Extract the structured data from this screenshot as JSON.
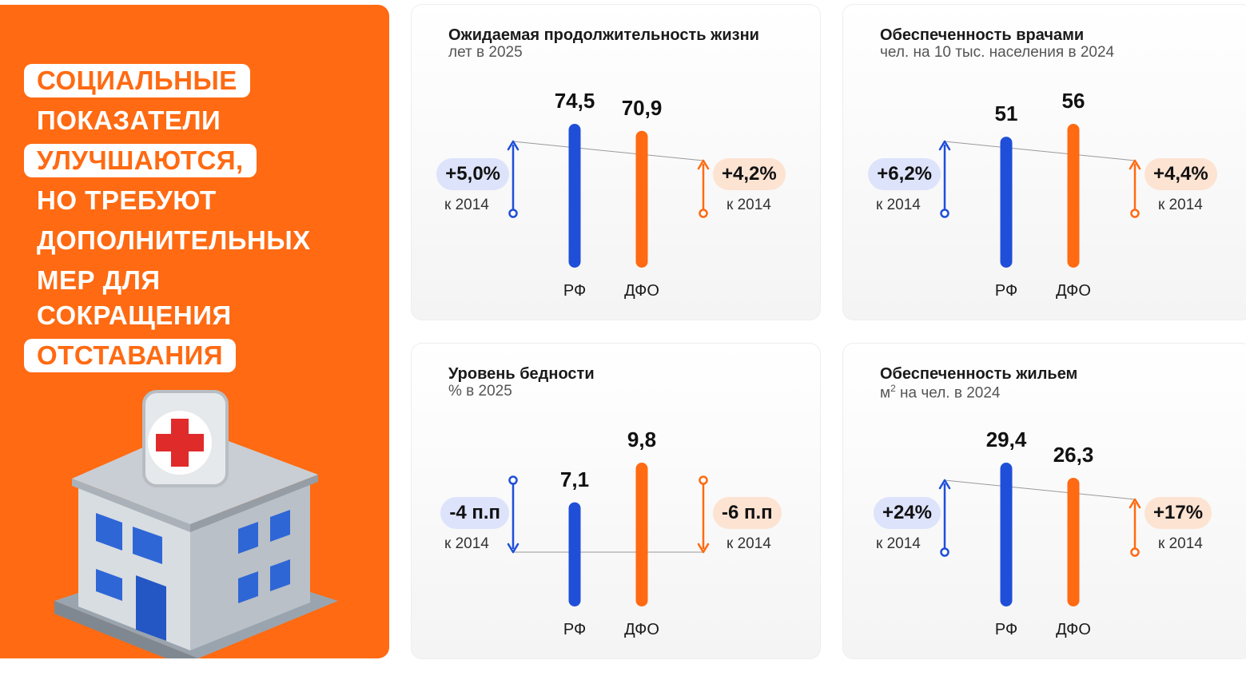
{
  "hero": {
    "lines": [
      {
        "text": "СОЦИАЛЬНЫЕ",
        "highlight": true
      },
      {
        "text": "ПОКАЗАТЕЛИ",
        "highlight": false
      },
      {
        "text": "УЛУЧШАЮТСЯ,",
        "highlight": true
      },
      {
        "text": "НО ТРЕБУЮТ",
        "highlight": false
      },
      {
        "text": "ДОПОЛНИТЕЛЬНЫХ",
        "highlight": false
      },
      {
        "text": "МЕР ДЛЯ",
        "highlight": false
      },
      {
        "text": "СОКРАЩЕНИЯ",
        "highlight": false
      },
      {
        "text": "ОТСТАВАНИЯ",
        "highlight": true
      }
    ],
    "illustration": "hospital-building-icon",
    "accent": "#ff6a12"
  },
  "colors": {
    "rf": "#1f4fd8",
    "dfo": "#ff6a12",
    "rf_pill": "#dde3fb",
    "dfo_pill": "#fde3d2"
  },
  "chart_data": [
    {
      "type": "bar",
      "title": "Ожидаемая продолжительность жизни",
      "subtitle": "лет в 2025",
      "categories": [
        "РФ",
        "ДФО"
      ],
      "values": [
        74.5,
        70.9
      ],
      "value_labels": [
        "74,5",
        "70,9"
      ],
      "changes": [
        {
          "label": "+5,0%",
          "note": "к 2014",
          "direction": "up"
        },
        {
          "label": "+4,2%",
          "note": "к 2014",
          "direction": "up"
        }
      ]
    },
    {
      "type": "bar",
      "title": "Обеспеченность врачами",
      "subtitle": "чел. на 10 тыс. населения в 2024",
      "categories": [
        "РФ",
        "ДФО"
      ],
      "values": [
        51,
        56
      ],
      "value_labels": [
        "51",
        "56"
      ],
      "changes": [
        {
          "label": "+6,2%",
          "note": "к 2014",
          "direction": "up"
        },
        {
          "label": "+4,4%",
          "note": "к 2014",
          "direction": "up"
        }
      ]
    },
    {
      "type": "bar",
      "title": "Уровень бедности",
      "subtitle": "% в 2025",
      "categories": [
        "РФ",
        "ДФО"
      ],
      "values": [
        7.1,
        9.8
      ],
      "value_labels": [
        "7,1",
        "9,8"
      ],
      "changes": [
        {
          "label": "-4 п.п",
          "note": "к 2014",
          "direction": "down"
        },
        {
          "label": "-6 п.п",
          "note": "к 2014",
          "direction": "down"
        }
      ]
    },
    {
      "type": "bar",
      "title": "Обеспеченность жильем",
      "subtitle": "м² на чел. в 2024",
      "categories": [
        "РФ",
        "ДФО"
      ],
      "values": [
        29.4,
        26.3
      ],
      "value_labels": [
        "29,4",
        "26,3"
      ],
      "changes": [
        {
          "label": "+24%",
          "note": "к 2014",
          "direction": "up"
        },
        {
          "label": "+17%",
          "note": "к 2014",
          "direction": "up"
        }
      ]
    }
  ]
}
